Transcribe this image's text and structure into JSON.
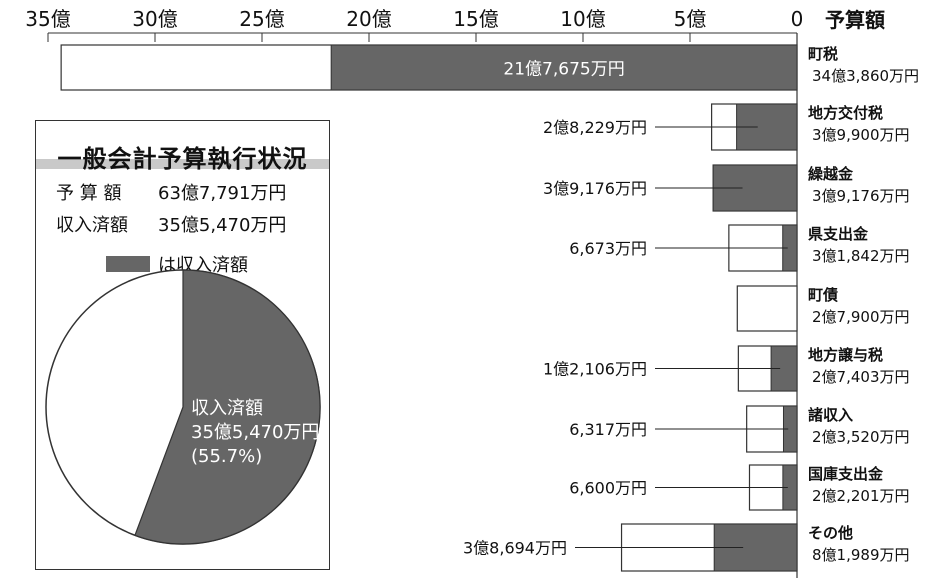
{
  "chart_data": {
    "type": "bar",
    "orientation": "horizontal",
    "axis_unit": "億",
    "axis_ticks": [
      {
        "value": 35,
        "label": "35億"
      },
      {
        "value": 30,
        "label": "30億"
      },
      {
        "value": 25,
        "label": "25億"
      },
      {
        "value": 20,
        "label": "20億"
      },
      {
        "value": 15,
        "label": "15億"
      },
      {
        "value": 10,
        "label": "10億"
      },
      {
        "value": 5,
        "label": "5億"
      },
      {
        "value": 0,
        "label": "0"
      }
    ],
    "xlim": [
      0,
      35
    ],
    "category_header": "予算額",
    "colors": {
      "collected": "#666666",
      "budget": "#ffffff"
    },
    "rows": [
      {
        "name": "町税",
        "budget": 34.386,
        "budget_label": "34億3,860万円",
        "collected": 21.7675,
        "collected_label": "21億7,675万円"
      },
      {
        "name": "地方交付税",
        "budget": 3.99,
        "budget_label": "3億9,900万円",
        "collected": 2.8229,
        "collected_label": "2億8,229万円"
      },
      {
        "name": "繰越金",
        "budget": 3.9176,
        "budget_label": "3億9,176万円",
        "collected": 3.9176,
        "collected_label": "3億9,176万円"
      },
      {
        "name": "県支出金",
        "budget": 3.1842,
        "budget_label": "3億1,842万円",
        "collected": 0.6673,
        "collected_label": "6,673万円"
      },
      {
        "name": "町債",
        "budget": 2.79,
        "budget_label": "2億7,900万円",
        "collected": 0,
        "collected_label": ""
      },
      {
        "name": "地方譲与税",
        "budget": 2.7403,
        "budget_label": "2億7,403万円",
        "collected": 1.2106,
        "collected_label": "1億2,106万円"
      },
      {
        "name": "諸収入",
        "budget": 2.352,
        "budget_label": "2億3,520万円",
        "collected": 0.6317,
        "collected_label": "6,317万円"
      },
      {
        "name": "国庫支出金",
        "budget": 2.2201,
        "budget_label": "2億2,201万円",
        "collected": 0.66,
        "collected_label": "6,600万円"
      },
      {
        "name": "その他",
        "budget": 8.1989,
        "budget_label": "8億1,989万円",
        "collected": 3.8694,
        "collected_label": "3億8,694万円"
      }
    ],
    "pie": {
      "collected_fraction": 0.557,
      "label_line1": "収入済額",
      "label_line2": "35億5,470万円",
      "label_line3": "(55.7%)"
    }
  },
  "summary": {
    "title": "一般会計予算執行状況",
    "budget_label": "予 算 額",
    "budget_value": "63億7,791万円",
    "collected_label": "収入済額",
    "collected_value": "35億5,470万円",
    "legend_text": "は収入済額"
  }
}
